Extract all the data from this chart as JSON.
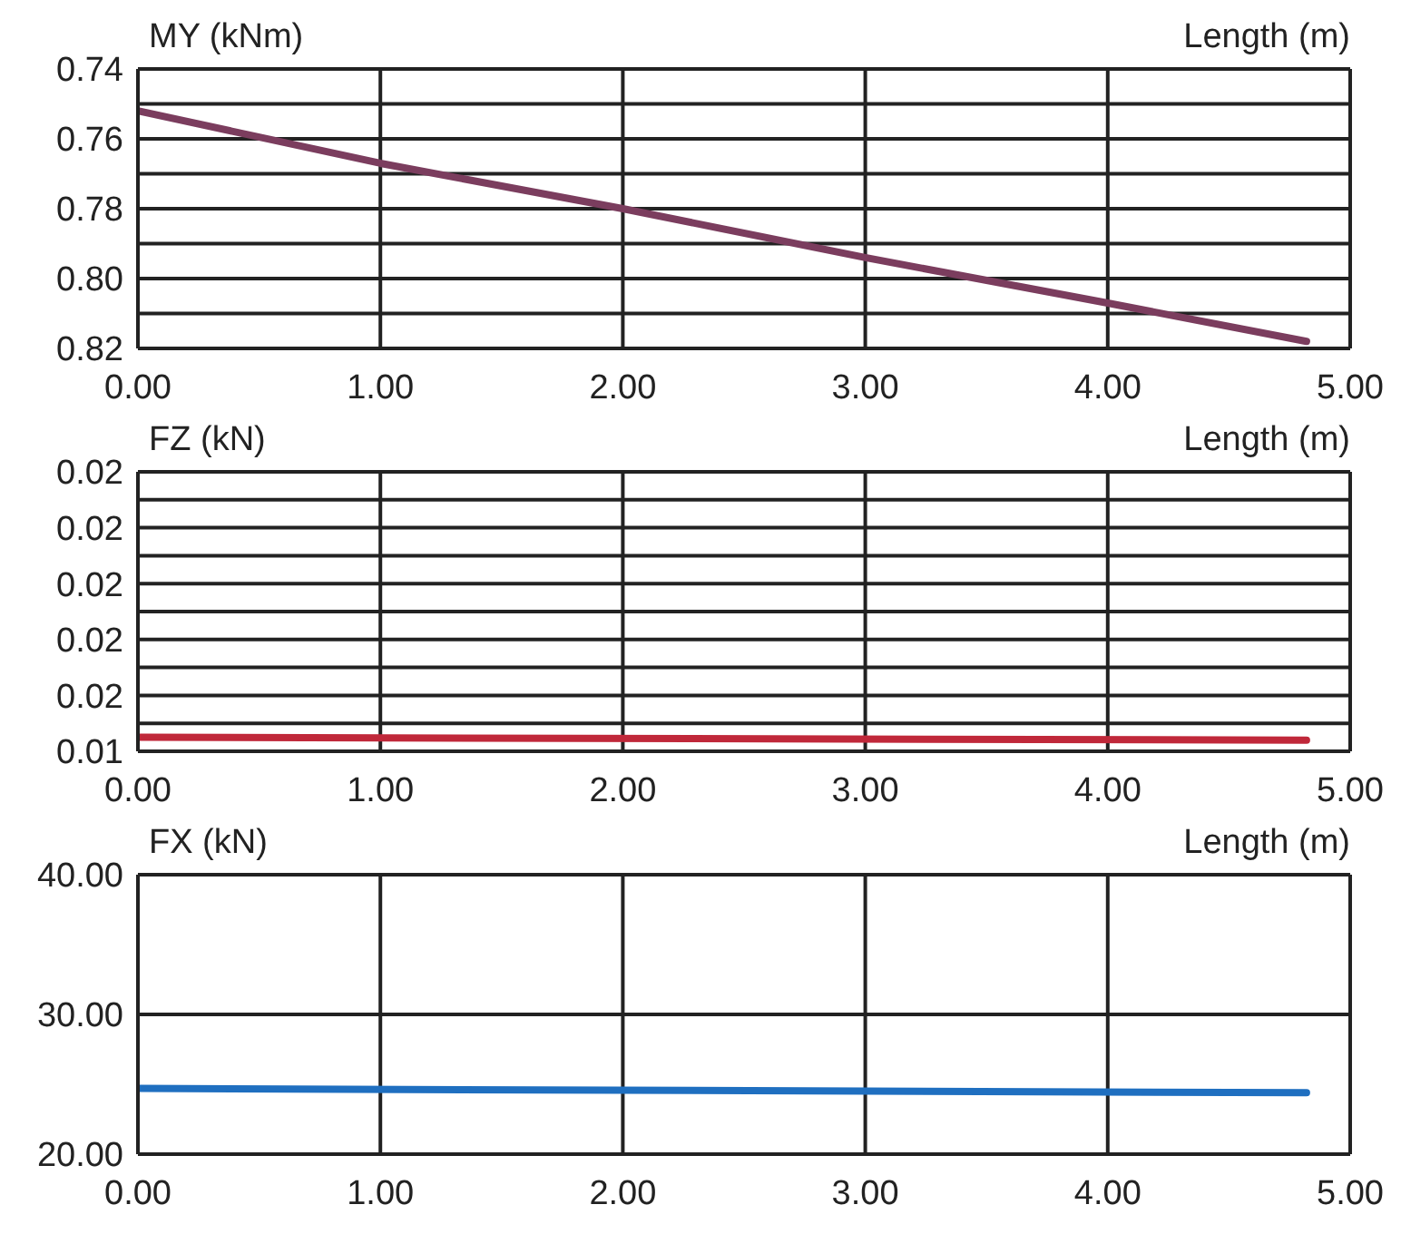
{
  "chart_data": [
    {
      "type": "line",
      "ylabel": "MY (kNm)",
      "xlabel": "Length (m)",
      "grid": true,
      "x": [
        0,
        1,
        2,
        3,
        4,
        4.82
      ],
      "series": [
        {
          "color": "#7b3d5e",
          "values": [
            0.752,
            0.767,
            0.78,
            0.794,
            0.807,
            0.818
          ]
        }
      ],
      "xlim": [
        0,
        5
      ],
      "xticks": [
        {
          "value": 0,
          "label": "0.00"
        },
        {
          "value": 1,
          "label": "1.00"
        },
        {
          "value": 2,
          "label": "2.00"
        },
        {
          "value": 3,
          "label": "3.00"
        },
        {
          "value": 4,
          "label": "4.00"
        },
        {
          "value": 5,
          "label": "5.00"
        }
      ],
      "ylim": [
        0.82,
        0.74
      ],
      "yticks": [
        {
          "value": 0.74,
          "label": "0.74"
        },
        {
          "value": 0.75,
          "label": null
        },
        {
          "value": 0.76,
          "label": "0.76"
        },
        {
          "value": 0.77,
          "label": null
        },
        {
          "value": 0.78,
          "label": "0.78"
        },
        {
          "value": 0.79,
          "label": null
        },
        {
          "value": 0.8,
          "label": "0.80"
        },
        {
          "value": 0.81,
          "label": null
        },
        {
          "value": 0.82,
          "label": "0.82"
        }
      ]
    },
    {
      "type": "line",
      "ylabel": "FZ (kN)",
      "xlabel": "Length (m)",
      "grid": true,
      "x": [
        0,
        4.82
      ],
      "series": [
        {
          "color": "#c0283a",
          "values": [
            0.01425,
            0.0142
          ]
        }
      ],
      "xlim": [
        0,
        5
      ],
      "xticks": [
        {
          "value": 0,
          "label": "0.00"
        },
        {
          "value": 1,
          "label": "1.00"
        },
        {
          "value": 2,
          "label": "2.00"
        },
        {
          "value": 3,
          "label": "3.00"
        },
        {
          "value": 4,
          "label": "4.00"
        },
        {
          "value": 5,
          "label": "5.00"
        }
      ],
      "ylim": [
        0.014,
        0.019
      ],
      "yticks": [
        {
          "value": 0.014,
          "label": "0.01"
        },
        {
          "value": 0.0145,
          "label": null
        },
        {
          "value": 0.015,
          "label": "0.02"
        },
        {
          "value": 0.0155,
          "label": null
        },
        {
          "value": 0.016,
          "label": "0.02"
        },
        {
          "value": 0.0165,
          "label": null
        },
        {
          "value": 0.017,
          "label": "0.02"
        },
        {
          "value": 0.0175,
          "label": null
        },
        {
          "value": 0.018,
          "label": "0.02"
        },
        {
          "value": 0.0185,
          "label": null
        },
        {
          "value": 0.019,
          "label": "0.02"
        }
      ]
    },
    {
      "type": "line",
      "ylabel": "FX (kN)",
      "xlabel": "Length (m)",
      "grid": true,
      "x": [
        0,
        4.82
      ],
      "series": [
        {
          "color": "#1f6fc0",
          "values": [
            24.7,
            24.4
          ]
        }
      ],
      "xlim": [
        0,
        5
      ],
      "xticks": [
        {
          "value": 0,
          "label": "0.00"
        },
        {
          "value": 1,
          "label": "1.00"
        },
        {
          "value": 2,
          "label": "2.00"
        },
        {
          "value": 3,
          "label": "3.00"
        },
        {
          "value": 4,
          "label": "4.00"
        },
        {
          "value": 5,
          "label": "5.00"
        }
      ],
      "ylim": [
        20,
        40
      ],
      "yticks": [
        {
          "value": 20,
          "label": "20.00"
        },
        {
          "value": 30,
          "label": "30.00"
        },
        {
          "value": 40,
          "label": "40.00"
        }
      ]
    }
  ]
}
